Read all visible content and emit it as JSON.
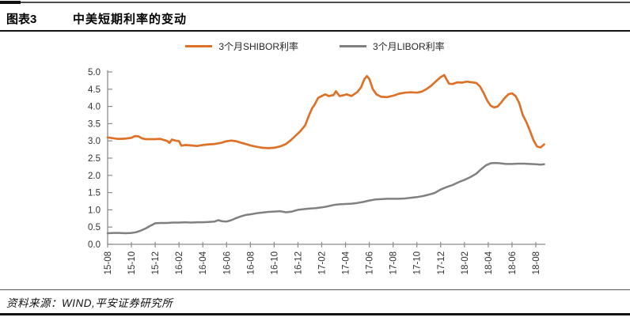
{
  "header": {
    "figure_label": "图表3",
    "title": "中美短期利率的变动"
  },
  "footer": {
    "source": "资料来源：WIND,平安证券研究所"
  },
  "colors": {
    "shibor_orange": "#DD7128",
    "libor_gray": "#808080",
    "axis": "#8C8C8C",
    "tick_text": "#333333"
  },
  "chart_data": {
    "type": "line",
    "title": "",
    "xlabel": "",
    "ylabel": "",
    "grid": false,
    "legend_position": "top-center",
    "ylim": [
      0.0,
      5.0
    ],
    "y_tick_step": 0.5,
    "y_tick_labels": [
      "0.0",
      "0.5",
      "1.0",
      "1.5",
      "2.0",
      "2.5",
      "3.0",
      "3.5",
      "4.0",
      "4.5",
      "5.0"
    ],
    "x_unit": "month index, 0 = 2015-08",
    "x_tick_months": [
      0,
      2,
      4,
      6,
      8,
      10,
      12,
      14,
      16,
      18,
      20,
      22,
      24,
      26,
      28,
      30,
      32,
      34,
      36
    ],
    "x_tick_labels": [
      "15-08",
      "15-10",
      "15-12",
      "16-02",
      "16-04",
      "16-06",
      "16-08",
      "16-10",
      "16-12",
      "17-02",
      "17-04",
      "17-06",
      "17-08",
      "17-10",
      "17-12",
      "18-02",
      "18-04",
      "18-06",
      "18-08"
    ],
    "legend": [
      {
        "label": "3个月SHIBOR利率",
        "color": "#DD7128"
      },
      {
        "label": "3个月LIBOR利率",
        "color": "#808080"
      }
    ],
    "series": [
      {
        "name": "3个月SHIBOR利率",
        "color": "#DD7128",
        "points": [
          [
            0,
            3.1
          ],
          [
            0.4,
            3.08
          ],
          [
            0.8,
            3.06
          ],
          [
            1.2,
            3.06
          ],
          [
            1.6,
            3.07
          ],
          [
            2.0,
            3.09
          ],
          [
            2.3,
            3.14
          ],
          [
            2.6,
            3.13
          ],
          [
            2.9,
            3.07
          ],
          [
            3.2,
            3.05
          ],
          [
            3.6,
            3.05
          ],
          [
            4.0,
            3.05
          ],
          [
            4.4,
            3.06
          ],
          [
            4.7,
            3.03
          ],
          [
            5.0,
            3.0
          ],
          [
            5.2,
            2.94
          ],
          [
            5.4,
            3.04
          ],
          [
            5.7,
            3.01
          ],
          [
            6.0,
            2.99
          ],
          [
            6.2,
            2.86
          ],
          [
            6.5,
            2.88
          ],
          [
            7.0,
            2.87
          ],
          [
            7.5,
            2.85
          ],
          [
            8.0,
            2.88
          ],
          [
            8.5,
            2.9
          ],
          [
            9.0,
            2.91
          ],
          [
            9.5,
            2.94
          ],
          [
            10.0,
            2.99
          ],
          [
            10.4,
            3.01
          ],
          [
            10.8,
            2.99
          ],
          [
            11.2,
            2.95
          ],
          [
            11.6,
            2.91
          ],
          [
            12.0,
            2.87
          ],
          [
            12.5,
            2.83
          ],
          [
            13.0,
            2.8
          ],
          [
            13.5,
            2.79
          ],
          [
            14.0,
            2.8
          ],
          [
            14.5,
            2.84
          ],
          [
            15.0,
            2.91
          ],
          [
            15.4,
            3.02
          ],
          [
            15.8,
            3.15
          ],
          [
            16.2,
            3.28
          ],
          [
            16.6,
            3.45
          ],
          [
            17.0,
            3.8
          ],
          [
            17.2,
            3.95
          ],
          [
            17.4,
            4.05
          ],
          [
            17.7,
            4.25
          ],
          [
            18.0,
            4.3
          ],
          [
            18.3,
            4.35
          ],
          [
            18.6,
            4.3
          ],
          [
            19.0,
            4.33
          ],
          [
            19.2,
            4.44
          ],
          [
            19.5,
            4.3
          ],
          [
            19.8,
            4.32
          ],
          [
            20.1,
            4.35
          ],
          [
            20.5,
            4.3
          ],
          [
            21.0,
            4.42
          ],
          [
            21.3,
            4.55
          ],
          [
            21.6,
            4.8
          ],
          [
            21.8,
            4.88
          ],
          [
            22.0,
            4.8
          ],
          [
            22.3,
            4.5
          ],
          [
            22.6,
            4.35
          ],
          [
            23.0,
            4.28
          ],
          [
            23.5,
            4.27
          ],
          [
            24.0,
            4.31
          ],
          [
            24.5,
            4.37
          ],
          [
            25.0,
            4.4
          ],
          [
            25.5,
            4.41
          ],
          [
            26.0,
            4.4
          ],
          [
            26.4,
            4.43
          ],
          [
            26.8,
            4.5
          ],
          [
            27.2,
            4.6
          ],
          [
            27.6,
            4.73
          ],
          [
            28.0,
            4.85
          ],
          [
            28.3,
            4.91
          ],
          [
            28.5,
            4.78
          ],
          [
            28.7,
            4.66
          ],
          [
            29.0,
            4.65
          ],
          [
            29.4,
            4.7
          ],
          [
            29.8,
            4.69
          ],
          [
            30.2,
            4.72
          ],
          [
            30.6,
            4.7
          ],
          [
            31.0,
            4.68
          ],
          [
            31.3,
            4.58
          ],
          [
            31.6,
            4.4
          ],
          [
            31.9,
            4.18
          ],
          [
            32.2,
            4.02
          ],
          [
            32.5,
            3.97
          ],
          [
            32.8,
            4.0
          ],
          [
            33.1,
            4.12
          ],
          [
            33.4,
            4.25
          ],
          [
            33.7,
            4.35
          ],
          [
            34.0,
            4.38
          ],
          [
            34.3,
            4.3
          ],
          [
            34.6,
            4.1
          ],
          [
            34.9,
            3.75
          ],
          [
            35.2,
            3.55
          ],
          [
            35.5,
            3.3
          ],
          [
            35.8,
            3.02
          ],
          [
            36.1,
            2.84
          ],
          [
            36.4,
            2.81
          ],
          [
            36.7,
            2.9
          ]
        ]
      },
      {
        "name": "3个月LIBOR利率",
        "color": "#808080",
        "points": [
          [
            0,
            0.32
          ],
          [
            0.5,
            0.33
          ],
          [
            1.0,
            0.33
          ],
          [
            1.5,
            0.32
          ],
          [
            2.0,
            0.33
          ],
          [
            2.4,
            0.35
          ],
          [
            2.8,
            0.4
          ],
          [
            3.2,
            0.46
          ],
          [
            3.6,
            0.54
          ],
          [
            4.0,
            0.61
          ],
          [
            4.5,
            0.62
          ],
          [
            5.0,
            0.62
          ],
          [
            5.5,
            0.63
          ],
          [
            6.0,
            0.63
          ],
          [
            6.5,
            0.64
          ],
          [
            7.0,
            0.63
          ],
          [
            7.5,
            0.64
          ],
          [
            8.0,
            0.64
          ],
          [
            8.5,
            0.65
          ],
          [
            9.0,
            0.66
          ],
          [
            9.3,
            0.7
          ],
          [
            9.6,
            0.67
          ],
          [
            10.0,
            0.66
          ],
          [
            10.4,
            0.7
          ],
          [
            10.8,
            0.76
          ],
          [
            11.2,
            0.81
          ],
          [
            11.6,
            0.85
          ],
          [
            12.0,
            0.87
          ],
          [
            12.5,
            0.9
          ],
          [
            13.0,
            0.92
          ],
          [
            13.5,
            0.94
          ],
          [
            14.0,
            0.95
          ],
          [
            14.5,
            0.96
          ],
          [
            15.0,
            0.93
          ],
          [
            15.5,
            0.95
          ],
          [
            16.0,
            1.0
          ],
          [
            16.5,
            1.02
          ],
          [
            17.0,
            1.04
          ],
          [
            17.5,
            1.05
          ],
          [
            18.0,
            1.07
          ],
          [
            18.5,
            1.1
          ],
          [
            19.0,
            1.14
          ],
          [
            19.5,
            1.16
          ],
          [
            20.0,
            1.17
          ],
          [
            20.5,
            1.18
          ],
          [
            21.0,
            1.2
          ],
          [
            21.5,
            1.23
          ],
          [
            22.0,
            1.27
          ],
          [
            22.5,
            1.3
          ],
          [
            23.0,
            1.31
          ],
          [
            23.5,
            1.32
          ],
          [
            24.0,
            1.32
          ],
          [
            24.5,
            1.32
          ],
          [
            25.0,
            1.33
          ],
          [
            25.5,
            1.35
          ],
          [
            26.0,
            1.37
          ],
          [
            26.5,
            1.4
          ],
          [
            27.0,
            1.44
          ],
          [
            27.5,
            1.49
          ],
          [
            28.0,
            1.59
          ],
          [
            28.5,
            1.66
          ],
          [
            29.0,
            1.72
          ],
          [
            29.5,
            1.8
          ],
          [
            30.0,
            1.87
          ],
          [
            30.5,
            1.95
          ],
          [
            31.0,
            2.05
          ],
          [
            31.4,
            2.18
          ],
          [
            31.8,
            2.29
          ],
          [
            32.2,
            2.35
          ],
          [
            32.6,
            2.36
          ],
          [
            33.0,
            2.35
          ],
          [
            33.5,
            2.33
          ],
          [
            34.0,
            2.33
          ],
          [
            34.5,
            2.34
          ],
          [
            35.0,
            2.34
          ],
          [
            35.5,
            2.33
          ],
          [
            36.0,
            2.32
          ],
          [
            36.4,
            2.31
          ],
          [
            36.7,
            2.32
          ]
        ]
      }
    ]
  }
}
